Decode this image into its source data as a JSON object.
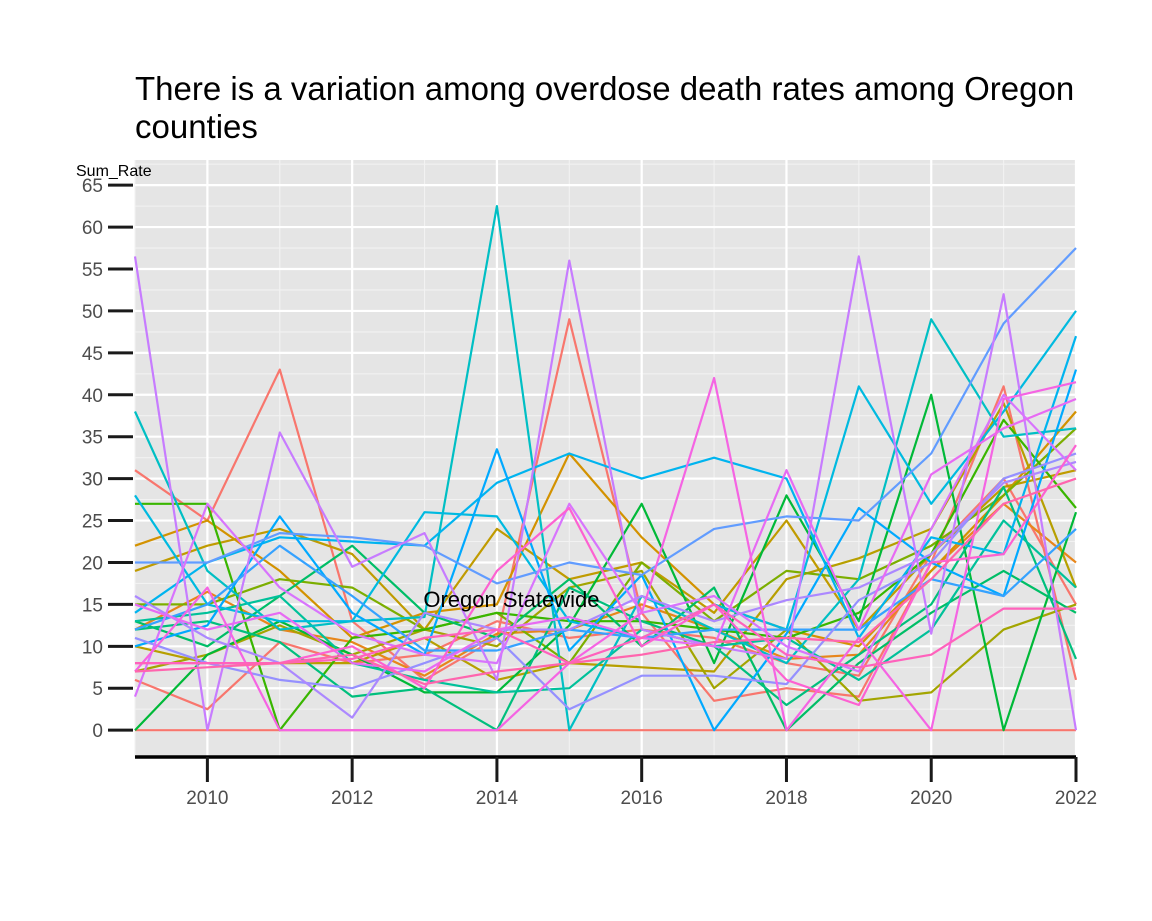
{
  "chart_data": {
    "type": "line",
    "title": "There is a variation among overdose death rates among Oregon counties",
    "ylabel": "Sum_Rate",
    "xlabel": "",
    "x": [
      2009,
      2010,
      2011,
      2012,
      2013,
      2014,
      2015,
      2016,
      2017,
      2018,
      2019,
      2020,
      2021,
      2022
    ],
    "xlim": [
      2009,
      2022
    ],
    "ylim": [
      -3.2,
      68
    ],
    "x_ticks": [
      2010,
      2012,
      2014,
      2016,
      2018,
      2020,
      2022
    ],
    "y_ticks": [
      0,
      5,
      10,
      15,
      20,
      25,
      30,
      35,
      40,
      45,
      50,
      55,
      60,
      65
    ],
    "grid": true,
    "legend": "none",
    "annotations": [
      {
        "text": "Oregon Statewide",
        "x": 2014.2,
        "y": 15.5
      }
    ],
    "series": [
      {
        "color": "#F8766D",
        "values": [
          31,
          25,
          43,
          13,
          6,
          11,
          49,
          14,
          3.5,
          5,
          4,
          20,
          41,
          6
        ]
      },
      {
        "color": "#F8766D",
        "values": [
          0,
          0,
          0,
          0,
          0,
          0,
          0,
          0,
          0,
          0,
          0,
          0,
          0,
          0
        ]
      },
      {
        "color": "#F8766D",
        "values": [
          6,
          2.5,
          10.5,
          8,
          9,
          13,
          11,
          12,
          11,
          8,
          6.5,
          21,
          30,
          15
        ]
      },
      {
        "color": "#E7861B",
        "values": [
          12,
          16.5,
          12,
          10.5,
          6.5,
          11.5,
          12,
          15,
          12,
          8.5,
          9,
          19,
          27,
          20
        ]
      },
      {
        "color": "#D39200",
        "values": [
          22,
          25,
          19,
          11,
          14,
          15,
          33,
          23,
          15,
          12,
          10,
          19,
          28,
          38
        ]
      },
      {
        "color": "#C09B00",
        "values": [
          19,
          22,
          24,
          21,
          12,
          24,
          18,
          20,
          14,
          25,
          12,
          21,
          29,
          31
        ]
      },
      {
        "color": "#B79F00",
        "values": [
          10,
          8,
          8,
          8,
          11,
          6,
          8,
          7.5,
          7,
          18,
          20.5,
          24,
          39,
          17
        ]
      },
      {
        "color": "#A3A500",
        "values": [
          7,
          9,
          12.5,
          9,
          12,
          10,
          17,
          19,
          5,
          12,
          3.5,
          4.5,
          12,
          15
        ]
      },
      {
        "color": "#7CAE00",
        "values": [
          15,
          15,
          18,
          17,
          12,
          14,
          8,
          20,
          13,
          19,
          18,
          22,
          28,
          36
        ]
      },
      {
        "color": "#39B600",
        "values": [
          27,
          27,
          0,
          11,
          12,
          14,
          13,
          13,
          12,
          11,
          14,
          21,
          37,
          26.5
        ]
      },
      {
        "color": "#00B938",
        "values": [
          0,
          9,
          13,
          9,
          4.5,
          4.5,
          12.5,
          27,
          8,
          28,
          13,
          40,
          0,
          26
        ]
      },
      {
        "color": "#00BE67",
        "values": [
          13,
          10,
          16,
          22,
          14,
          11,
          18,
          10,
          17,
          0,
          8,
          14,
          19,
          14
        ]
      },
      {
        "color": "#00BF7D",
        "values": [
          12,
          13,
          10.5,
          4,
          5,
          0,
          17,
          13,
          10,
          3,
          9,
          15,
          29,
          8.5
        ]
      },
      {
        "color": "#00C19A",
        "values": [
          13,
          14,
          16,
          8,
          6,
          4.5,
          5,
          12,
          10,
          11,
          6,
          12,
          25,
          17
        ]
      },
      {
        "color": "#00BFC4",
        "values": [
          38,
          19,
          12,
          13,
          13.5,
          62.5,
          0,
          16,
          12,
          8,
          18,
          49,
          35,
          36
        ]
      },
      {
        "color": "#00BAE0",
        "values": [
          28,
          15,
          13,
          13,
          26,
          25.5,
          13,
          11,
          15,
          12,
          41,
          27,
          38,
          50
        ]
      },
      {
        "color": "#00B4EF",
        "values": [
          14,
          20,
          23,
          22.5,
          22,
          29.5,
          33,
          30,
          32.5,
          30,
          11,
          23,
          21,
          47
        ]
      },
      {
        "color": "#00A9FF",
        "values": [
          10,
          12.5,
          25.5,
          14,
          9,
          33.5,
          9.5,
          18.5,
          0,
          11.5,
          26.5,
          20,
          16,
          43
        ]
      },
      {
        "color": "#35A2FF",
        "values": [
          12,
          15,
          22,
          16,
          9.5,
          9.5,
          12,
          11,
          12,
          12,
          12,
          18,
          16,
          24
        ]
      },
      {
        "color": "#619CFF",
        "values": [
          20,
          20,
          23.5,
          23,
          22,
          17.5,
          20,
          18.5,
          24,
          25.5,
          25,
          33,
          48.5,
          57.5
        ]
      },
      {
        "color": "#9590FF",
        "values": [
          11,
          8,
          6,
          5,
          8,
          11,
          2.5,
          6.5,
          6.5,
          5.5,
          15.5,
          20,
          30,
          33
        ]
      },
      {
        "color": "#AC88FF",
        "values": [
          16,
          11,
          8,
          1.5,
          14,
          12,
          12,
          16,
          13,
          15.5,
          17,
          21,
          29.5,
          32
        ]
      },
      {
        "color": "#C77CFF",
        "values": [
          56.5,
          0,
          35.5,
          19.5,
          23.5,
          6,
          56,
          12,
          10,
          8.5,
          56.5,
          11.5,
          52,
          0
        ]
      },
      {
        "color": "#D874FD",
        "values": [
          4,
          27,
          17,
          11.5,
          9,
          8,
          27,
          14,
          16,
          10,
          7,
          24,
          40,
          31
        ]
      },
      {
        "color": "#E76BF3",
        "values": [
          15,
          12,
          14,
          8,
          7,
          12,
          13.5,
          11,
          10,
          31,
          12,
          30.5,
          36,
          39.5
        ]
      },
      {
        "color": "#F564E3",
        "values": [
          7,
          17,
          0,
          0,
          0,
          0,
          8,
          14,
          42,
          0,
          11,
          0,
          39.5,
          41.5
        ]
      },
      {
        "color": "#FD61D1",
        "values": [
          8,
          8,
          8,
          10,
          5,
          19,
          26.5,
          10,
          15,
          6,
          3,
          20,
          21,
          34
        ]
      },
      {
        "color": "#FF62BC",
        "values": [
          8,
          8,
          8,
          8.5,
          11,
          12,
          8,
          11,
          15,
          9,
          7.5,
          9,
          14.5,
          14.5
        ]
      },
      {
        "color": "#FF65AE",
        "values": [
          7,
          7.5,
          8,
          9,
          5.5,
          7,
          8,
          9,
          10.5,
          11,
          10.5,
          18,
          27,
          30
        ]
      }
    ]
  }
}
